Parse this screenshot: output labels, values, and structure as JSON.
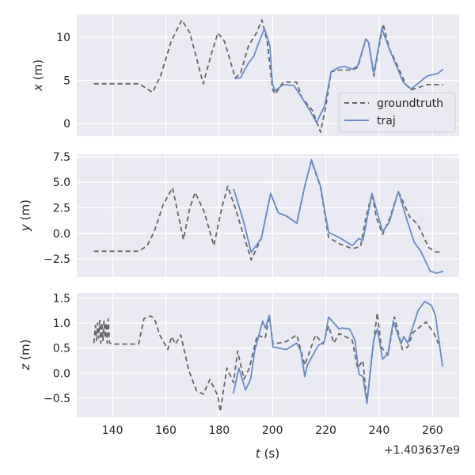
{
  "chart_data": [
    {
      "type": "line",
      "ylabel_var": "x",
      "ylabel_unit": " (m)",
      "xlim": [
        126.6,
        270
      ],
      "ylim": [
        -1.47,
        12.66
      ],
      "yticks": [
        0,
        5,
        10
      ],
      "ytick_labels": [
        "0",
        "5",
        "10"
      ],
      "grid": true,
      "legend": {
        "placement": "lower-right",
        "entries": [
          "groundtruth",
          "traj"
        ]
      },
      "series": [
        {
          "name": "groundtruth",
          "style": "dashed",
          "color": "#666666",
          "x": [
            133,
            140,
            150,
            155,
            158,
            162,
            166,
            169,
            172,
            174,
            177,
            179.5,
            182,
            186,
            188,
            191,
            194,
            196,
            198,
            200,
            201,
            204,
            209,
            211,
            215,
            218,
            220,
            222,
            225,
            230,
            232,
            235,
            236,
            238,
            240,
            241.5,
            244,
            245,
            250,
            252,
            258,
            264
          ],
          "y": [
            4.6,
            4.6,
            4.6,
            3.6,
            5.5,
            9.5,
            12,
            10.5,
            7,
            4.6,
            8,
            10.5,
            9.5,
            5.3,
            5.8,
            9,
            10.5,
            12,
            9.5,
            4,
            3.4,
            4.8,
            4.8,
            3,
            1.5,
            -1,
            2,
            6,
            6.2,
            6.2,
            6.5,
            9.8,
            9.5,
            5.5,
            9,
            11.5,
            8.5,
            8,
            4.5,
            3.9,
            4.5,
            4.5
          ]
        },
        {
          "name": "traj",
          "style": "solid",
          "color": "#6a8bc6",
          "x": [
            186,
            188,
            191,
            193,
            195,
            197,
            199,
            200,
            201,
            204,
            208,
            211,
            214,
            216.5,
            219.5,
            222,
            225,
            227,
            230,
            232,
            235,
            236,
            238,
            241,
            244,
            249,
            252,
            258,
            262,
            264
          ],
          "y": [
            5.2,
            5.3,
            7,
            7.8,
            9.5,
            11,
            9,
            4.5,
            3.8,
            4.5,
            4.4,
            3,
            1.5,
            0.1,
            2,
            6,
            6.5,
            6.6,
            6.3,
            6.7,
            9.8,
            9.4,
            5.8,
            11,
            8.5,
            4.8,
            4,
            5.5,
            5.8,
            6.3
          ]
        }
      ]
    },
    {
      "type": "line",
      "ylabel_var": "y",
      "ylabel_unit": " (m)",
      "xlim": [
        126.6,
        270
      ],
      "ylim": [
        -4.28,
        7.73
      ],
      "yticks": [
        -2.5,
        0,
        2.5,
        5,
        7.5
      ],
      "ytick_labels": [
        "−2.5",
        "0.0",
        "2.5",
        "5.0",
        "7.5"
      ],
      "grid": true,
      "series": [
        {
          "name": "groundtruth",
          "style": "dashed",
          "color": "#666666",
          "x": [
            133,
            150,
            153,
            155.7,
            159,
            162.5,
            166.6,
            169,
            171,
            174.4,
            178,
            181,
            183.2,
            186,
            192,
            195.8,
            199.3,
            202.2,
            205.2,
            209.1,
            212,
            214.6,
            218,
            221,
            225,
            229.9,
            233,
            235,
            237.3,
            239,
            241.3,
            244,
            247.2,
            251.5,
            254.4,
            258.6,
            261,
            263.5
          ],
          "y": [
            -1.75,
            -1.75,
            -1.2,
            0.2,
            2.8,
            4.46,
            -0.6,
            2.5,
            4,
            2.1,
            -1.2,
            2.5,
            4.6,
            2.5,
            -2.6,
            -0.5,
            3.9,
            2,
            1.7,
            1,
            4.5,
            7.1,
            4.5,
            -0.4,
            -1,
            -1.5,
            -1.3,
            1.5,
            3.9,
            1.5,
            -0.1,
            1.5,
            4.1,
            1.6,
            0.9,
            -1.4,
            -1.8,
            -1.85
          ]
        },
        {
          "name": "traj",
          "style": "solid",
          "color": "#6a8bc6",
          "x": [
            185.4,
            189,
            192,
            195.8,
            199.3,
            202.2,
            205.2,
            209.1,
            212,
            214.6,
            218,
            221,
            225,
            229.9,
            232.4,
            233.9,
            237.3,
            241.3,
            243.8,
            247.2,
            250.7,
            253.2,
            255.6,
            259.1,
            261.6,
            264
          ],
          "y": [
            4.35,
            1.3,
            -1.85,
            -0.5,
            3.9,
            2,
            1.7,
            1,
            4.5,
            7.2,
            4.6,
            0.1,
            -0.4,
            -1.2,
            -0.5,
            -0.7,
            3.9,
            0.15,
            1.1,
            4.1,
            1.1,
            -0.9,
            -1.75,
            -3.7,
            -3.9,
            -3.7
          ]
        }
      ]
    },
    {
      "type": "line",
      "ylabel_var": "z",
      "ylabel_unit": " (m)",
      "xlim": [
        126.6,
        270
      ],
      "ylim": [
        -0.88,
        1.6
      ],
      "yticks": [
        -0.5,
        0,
        0.5,
        1,
        1.5
      ],
      "ytick_labels": [
        "−0.5",
        "0.0",
        "0.5",
        "1.0",
        "1.5"
      ],
      "xticks": [
        140,
        160,
        180,
        200,
        220,
        240,
        260
      ],
      "xtick_labels": [
        "140",
        "160",
        "180",
        "200",
        "220",
        "240",
        "260"
      ],
      "xlabel_var": "t",
      "xlabel_unit": " (s)",
      "x_offset_label": "+1.403637e9",
      "grid": true,
      "series": [
        {
          "name": "groundtruth",
          "style": "dashed",
          "color": "#666666",
          "x": [
            133,
            133.6,
            134,
            134.4,
            134.8,
            135.2,
            135.6,
            136,
            136.4,
            136.8,
            137.2,
            137.6,
            138,
            138.4,
            138.9,
            139.9,
            149.8,
            151.8,
            154.2,
            155.7,
            157.7,
            160.7,
            162.2,
            163.6,
            165.6,
            168.6,
            171.5,
            174,
            176.5,
            179.5,
            180.4,
            182.9,
            185.4,
            186.9,
            189.3,
            191.3,
            194.3,
            197.3,
            198.8,
            200.2,
            205.2,
            209.1,
            212.1,
            216.1,
            219,
            221,
            223,
            225,
            229.9,
            231.9,
            233.9,
            235.4,
            237.9,
            239.3,
            240.8,
            243.3,
            245.7,
            248.7,
            250.7,
            252.7,
            257.6,
            260.6,
            262.1,
            264
          ],
          "y": [
            0.6,
            0.95,
            0.65,
            1.0,
            0.7,
            1.05,
            0.6,
            1.0,
            0.65,
            1.05,
            0.7,
            1.0,
            0.6,
            1.08,
            0.6,
            0.58,
            0.58,
            1.09,
            1.14,
            1.09,
            0.76,
            0.47,
            0.73,
            0.58,
            0.76,
            0.05,
            -0.35,
            -0.42,
            -0.13,
            -0.45,
            -0.77,
            0.1,
            -0.19,
            0.44,
            -0.12,
            0.1,
            0.76,
            0.7,
            1.15,
            0.58,
            0.63,
            0.76,
            0.16,
            0.76,
            0.58,
            0.94,
            0.6,
            0.79,
            0.66,
            0.1,
            0.25,
            -0.6,
            0.63,
            1.2,
            0.52,
            0.36,
            1.12,
            0.47,
            0.52,
            0.81,
            1.02,
            0.79,
            0.6,
            0.6
          ]
        },
        {
          "name": "traj",
          "style": "solid",
          "color": "#6a8bc6",
          "x": [
            185.3,
            187.4,
            189.9,
            191.8,
            193.3,
            196.3,
            197.3,
            198.8,
            200.2,
            205.2,
            209.1,
            210.6,
            212.1,
            213.1,
            217.1,
            219.5,
            221,
            225,
            226,
            228.9,
            230.9,
            232.4,
            233.9,
            235.4,
            237.9,
            239.3,
            241.3,
            243.3,
            245.3,
            248.2,
            249.2,
            250.7,
            254.6,
            257.1,
            259.6,
            261.1,
            263.8
          ],
          "y": [
            -0.41,
            0.1,
            -0.34,
            -0.12,
            0.44,
            1.04,
            0.9,
            1.15,
            0.52,
            0.47,
            0.6,
            0.44,
            -0.07,
            0.16,
            0.55,
            0.63,
            1.12,
            0.88,
            0.9,
            0.88,
            0.66,
            -0.02,
            -0.07,
            -0.6,
            0.66,
            0.88,
            0.28,
            0.39,
            1.04,
            0.58,
            0.73,
            0.6,
            1.25,
            1.43,
            1.35,
            1.15,
            0.13
          ]
        }
      ]
    }
  ]
}
